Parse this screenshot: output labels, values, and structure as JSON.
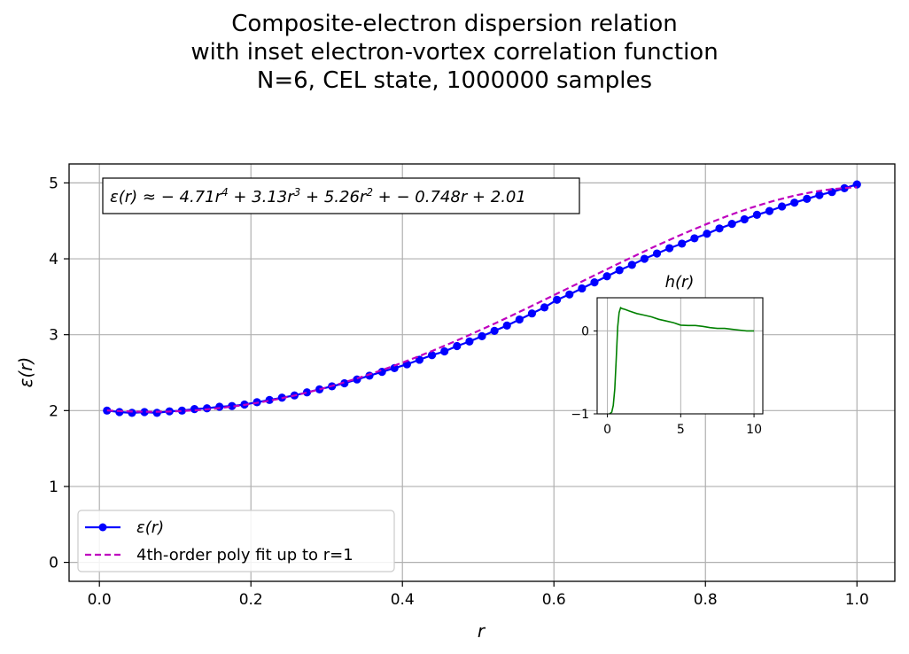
{
  "chart_data": [
    {
      "type": "line",
      "title_lines": [
        "Composite-electron dispersion relation",
        "with inset electron-vortex correlation function",
        "N=6, CEL state, 1000000 samples"
      ],
      "xlabel": "r",
      "ylabel": "ε(r)",
      "xlim": [
        -0.04,
        1.05
      ],
      "ylim": [
        -0.25,
        5.25
      ],
      "xticks": [
        0.0,
        0.2,
        0.4,
        0.6,
        0.8,
        1.0
      ],
      "xtick_labels": [
        "0.0",
        "0.2",
        "0.4",
        "0.6",
        "0.8",
        "1.0"
      ],
      "yticks": [
        0,
        1,
        2,
        3,
        4,
        5
      ],
      "ytick_labels": [
        "0",
        "1",
        "2",
        "3",
        "4",
        "5"
      ],
      "grid": true,
      "legend_position": "lower-left",
      "annotation": {
        "prefix": "ε(r) ≈ − 4.71",
        "terms": [
          {
            "base": "r",
            "sup": "4",
            "after": " + 3.13"
          },
          {
            "base": "r",
            "sup": "3",
            "after": " + 5.26"
          },
          {
            "base": "r",
            "sup": "2",
            "after": " + − 0.748r + 2.01"
          }
        ]
      },
      "fit_coefficients": [
        -4.71,
        3.13,
        5.26,
        -0.748,
        2.01
      ],
      "series": [
        {
          "name": "ε(r)",
          "style": "line-with-markers",
          "color": "#0000ff",
          "x": [
            0.01,
            0.0265,
            0.043,
            0.0595,
            0.076,
            0.0925,
            0.109,
            0.1255,
            0.142,
            0.1585,
            0.175,
            0.1915,
            0.208,
            0.2245,
            0.241,
            0.2575,
            0.274,
            0.2905,
            0.307,
            0.3235,
            0.34,
            0.3565,
            0.373,
            0.3895,
            0.406,
            0.4225,
            0.439,
            0.4555,
            0.472,
            0.4885,
            0.505,
            0.5215,
            0.538,
            0.5545,
            0.571,
            0.5875,
            0.604,
            0.6205,
            0.637,
            0.6535,
            0.67,
            0.6865,
            0.703,
            0.7195,
            0.736,
            0.7525,
            0.769,
            0.7855,
            0.802,
            0.8185,
            0.835,
            0.8515,
            0.868,
            0.8845,
            0.901,
            0.9175,
            0.934,
            0.9505,
            0.967,
            0.9835,
            1.0
          ],
          "y": [
            2.0,
            1.98,
            1.97,
            1.98,
            1.97,
            1.99,
            2.0,
            2.02,
            2.03,
            2.05,
            2.06,
            2.08,
            2.11,
            2.14,
            2.17,
            2.2,
            2.24,
            2.28,
            2.32,
            2.36,
            2.41,
            2.46,
            2.51,
            2.56,
            2.61,
            2.67,
            2.73,
            2.78,
            2.85,
            2.91,
            2.98,
            3.05,
            3.12,
            3.2,
            3.28,
            3.36,
            3.46,
            3.53,
            3.61,
            3.69,
            3.77,
            3.85,
            3.92,
            4.0,
            4.07,
            4.14,
            4.2,
            4.27,
            4.33,
            4.4,
            4.46,
            4.52,
            4.58,
            4.63,
            4.69,
            4.74,
            4.79,
            4.84,
            4.88,
            4.93,
            4.98
          ]
        },
        {
          "name": "4th-order poly fit up to r=1",
          "style": "dashed",
          "color": "#bf00bf"
        }
      ]
    },
    {
      "type": "line",
      "title": "h(r)",
      "xlim": [
        -0.7,
        10.6
      ],
      "ylim": [
        -1.0,
        0.4
      ],
      "xticks": [
        0,
        5,
        10
      ],
      "xtick_labels": [
        "0",
        "5",
        "10"
      ],
      "yticks": [
        -1,
        0
      ],
      "ytick_labels": [
        "−1",
        "0"
      ],
      "grid": true,
      "series": [
        {
          "color": "#008000",
          "x": [
            0.15,
            0.3,
            0.4,
            0.5,
            0.6,
            0.7,
            0.8,
            0.9,
            1.0,
            1.2,
            1.5,
            2.0,
            2.5,
            3.0,
            3.5,
            4.0,
            4.5,
            5.0,
            5.5,
            6.0,
            6.5,
            7.0,
            7.5,
            8.0,
            8.5,
            9.0,
            9.5,
            10.0
          ],
          "y": [
            -1.0,
            -0.98,
            -0.9,
            -0.7,
            -0.35,
            0.05,
            0.22,
            0.28,
            0.27,
            0.26,
            0.24,
            0.21,
            0.19,
            0.17,
            0.14,
            0.12,
            0.1,
            0.07,
            0.065,
            0.065,
            0.055,
            0.04,
            0.03,
            0.03,
            0.02,
            0.01,
            0.0,
            0.0
          ]
        }
      ]
    }
  ]
}
